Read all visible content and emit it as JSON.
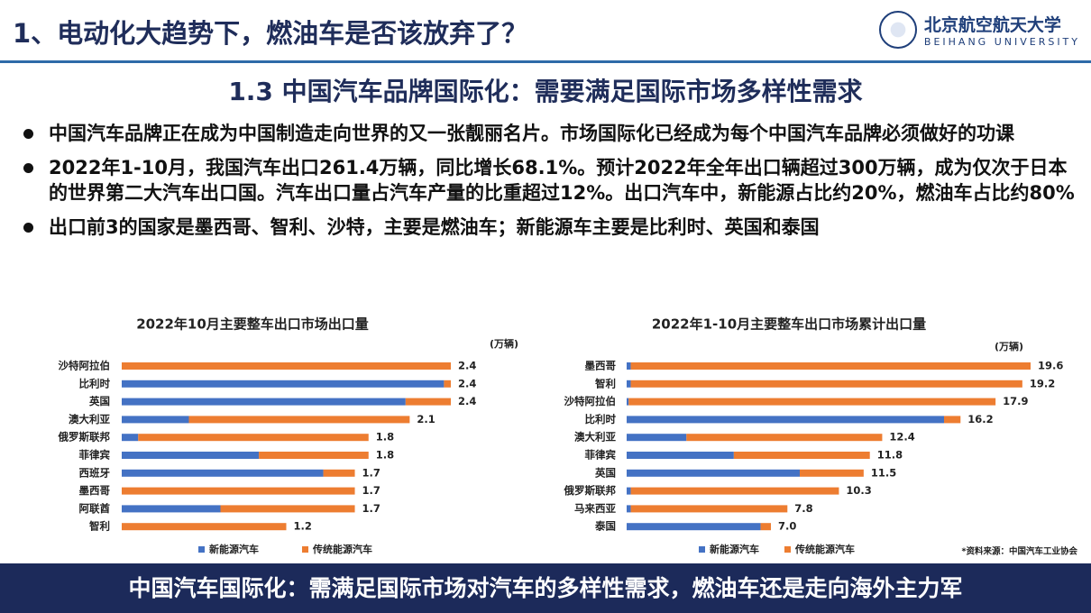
{
  "header": {
    "title": "1、电动化大趋势下，燃油车是否该放弃了？",
    "logo_cn": "北京航空航天大学",
    "logo_en": "BEIHANG UNIVERSITY"
  },
  "subtitle": "1.3 中国汽车品牌国际化：需要满足国际市场多样性需求",
  "bullets": [
    "中国汽车品牌正在成为中国制造走向世界的又一张靓丽名片。市场国际化已经成为每个中国汽车品牌必须做好的功课",
    "2022年1-10月，我国汽车出口261.4万辆，同比增长68.1%。预计2022年全年出口辆超过300万辆，成为仅次于日本的世界第二大汽车出口国。汽车出口量占汽车产量的比重超过12%。出口汽车中，新能源占比约20%，燃油车占比约80%",
    "出口前3的国家是墨西哥、智利、沙特，主要是燃油车；新能源车主要是比利时、英国和泰国"
  ],
  "chart_data": [
    {
      "type": "bar",
      "orientation": "horizontal",
      "stacked": true,
      "title": "2022年10月主要整车出口市场出口量",
      "unit": "(万辆)",
      "categories": [
        "沙特阿拉伯",
        "比利时",
        "英国",
        "澳大利亚",
        "俄罗斯联邦",
        "菲律宾",
        "西班牙",
        "墨西哥",
        "阿联酋",
        "智利"
      ],
      "series": [
        {
          "name": "新能源汽车",
          "color": "#4472c4",
          "values": [
            0,
            2.35,
            2.07,
            0.49,
            0.12,
            1.0,
            1.47,
            0,
            0.72,
            0
          ]
        },
        {
          "name": "传统能源汽车",
          "color": "#ed7d31",
          "values": [
            2.4,
            0.05,
            0.33,
            1.61,
            1.68,
            0.8,
            0.23,
            1.7,
            0.98,
            1.2
          ]
        }
      ],
      "totals": [
        2.4,
        2.4,
        2.4,
        2.1,
        1.8,
        1.8,
        1.7,
        1.7,
        1.7,
        1.2
      ],
      "value_labels": [
        "2.4",
        "2.4",
        "2.4",
        "2.1",
        "1.8",
        "1.8",
        "1.7",
        "1.7",
        "1.7",
        "1.2"
      ]
    },
    {
      "type": "bar",
      "orientation": "horizontal",
      "stacked": true,
      "title": "2022年1-10月主要整车出口市场累计出口量",
      "unit": "(万辆)",
      "categories": [
        "墨西哥",
        "智利",
        "沙特阿拉伯",
        "比利时",
        "澳大利亚",
        "菲律宾",
        "英国",
        "俄罗斯联邦",
        "马来西亚",
        "泰国"
      ],
      "series": [
        {
          "name": "新能源汽车",
          "color": "#4472c4",
          "values": [
            0.2,
            0.2,
            0.1,
            15.4,
            2.9,
            5.2,
            8.4,
            0.2,
            0.2,
            6.5
          ]
        },
        {
          "name": "传统能源汽车",
          "color": "#ed7d31",
          "values": [
            19.4,
            19.0,
            17.8,
            0.8,
            9.5,
            6.6,
            3.1,
            10.1,
            7.6,
            0.5
          ]
        }
      ],
      "totals": [
        19.6,
        19.2,
        17.9,
        16.2,
        12.4,
        11.8,
        11.5,
        10.3,
        7.8,
        7.0
      ],
      "value_labels": [
        "19.6",
        "19.2",
        "17.9",
        "16.2",
        "12.4",
        "11.8",
        "11.5",
        "10.3",
        "7.8",
        "7.0"
      ],
      "source": "*资料来源：中国汽车工业协会"
    }
  ],
  "footer": "中国汽车国际化：需满足国际市场对汽车的多样性需求，燃油车还是走向海外主力军"
}
